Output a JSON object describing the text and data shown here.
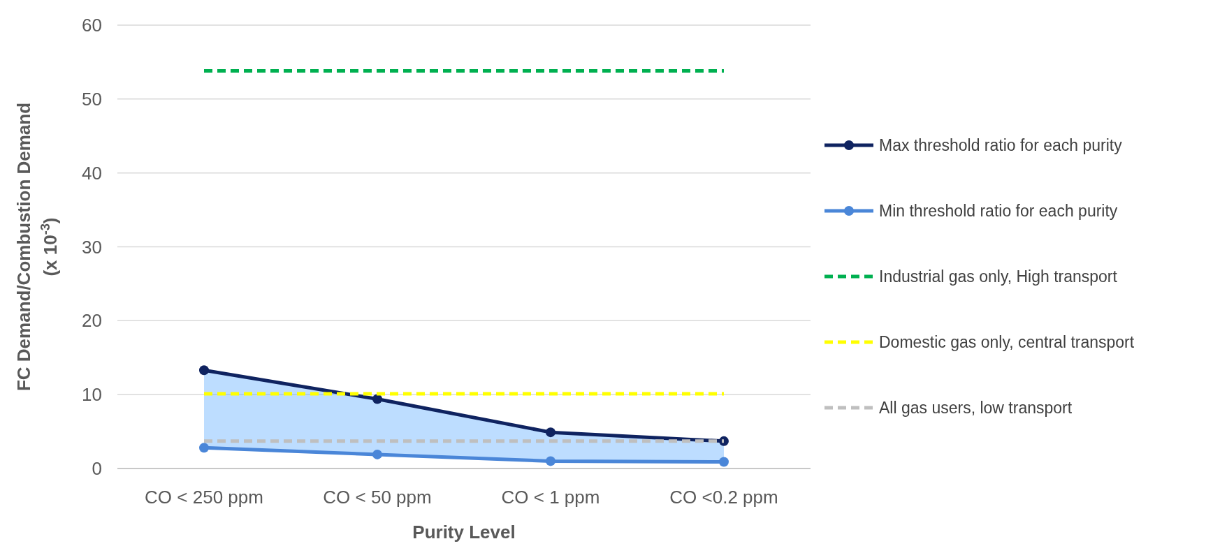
{
  "chart_data": {
    "type": "line",
    "xlabel": "Purity Level",
    "ylabel": "FC Demand/Combustion Demand\n(x 10$^{-3}$)",
    "categories": [
      "CO < 250 ppm",
      "CO < 50 ppm",
      "CO < 1 ppm",
      "CO <0.2 ppm"
    ],
    "ylim": [
      0,
      60
    ],
    "yticks": [
      0,
      10,
      20,
      30,
      40,
      50,
      60
    ],
    "grid": "y",
    "legend": "right",
    "series": [
      {
        "name": "Max threshold ratio for each purity",
        "color": "#0f2360",
        "values": [
          13.3,
          9.4,
          4.9,
          3.7
        ],
        "marker": "circle",
        "line_style": "solid",
        "lower": [
          2.8,
          1.9,
          1.0,
          0.9
        ],
        "upper": [
          13.3,
          9.4,
          4.9,
          3.7
        ]
      },
      {
        "name": "Min threshold ratio for each purity",
        "color": "#4a86d8",
        "values": [
          2.8,
          1.9,
          1.0,
          0.9
        ],
        "marker": "circle",
        "line_style": "solid"
      },
      {
        "name": "Industrial gas only, High transport",
        "color": "#00b050",
        "values": [
          53.8,
          53.8,
          53.8,
          53.8
        ],
        "marker": "none",
        "line_style": "dashed"
      },
      {
        "name": "Domestic gas only, central transport",
        "color": "#ffff00",
        "values": [
          10.1,
          10.1,
          10.1,
          10.1
        ],
        "marker": "none",
        "line_style": "dashed"
      },
      {
        "name": "All gas users, low transport",
        "color": "#bfbfbf",
        "values": [
          3.7,
          3.7,
          3.7,
          3.7
        ],
        "marker": "none",
        "line_style": "dashed"
      }
    ]
  }
}
